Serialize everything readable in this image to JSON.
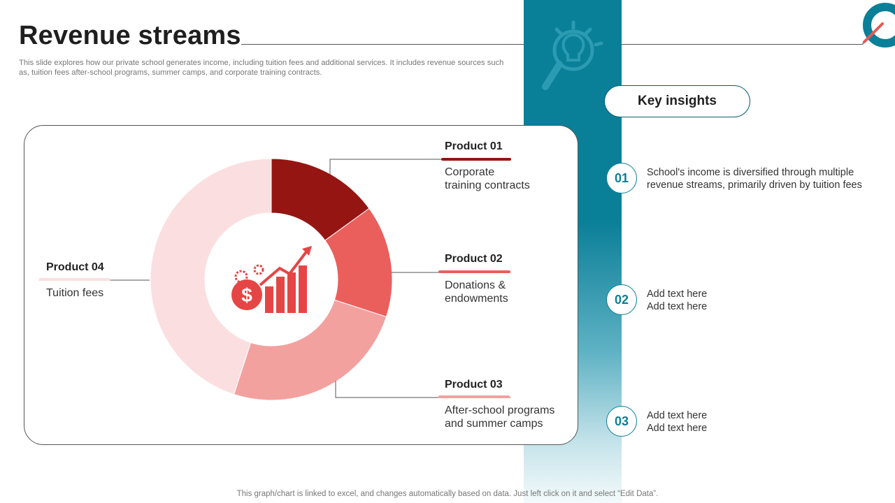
{
  "header": {
    "title": "Revenue streams",
    "subtitle": "This slide explores how our private school generates income, including tuition fees and additional services. It includes revenue sources such as, tuition fees after-school programs, summer camps, and corporate training contracts."
  },
  "chart_data": {
    "type": "pie",
    "variant": "donut",
    "categories": [
      "Product 01",
      "Product 02",
      "Product 03",
      "Product 04"
    ],
    "descriptions": [
      "Corporate training contracts",
      "Donations & endowments",
      "After-school programs and summer camps",
      "Tuition fees"
    ],
    "values": [
      15,
      15,
      25,
      45
    ],
    "colors": [
      "#951512",
      "#ea5f5c",
      "#f2a19f",
      "#fbdfe0"
    ],
    "legend_placement": "callouts"
  },
  "callouts": [
    {
      "title": "Product 01",
      "line1": "Corporate",
      "line2": "training contracts"
    },
    {
      "title": "Product 02",
      "line1": "Donations &",
      "line2": "endowments"
    },
    {
      "title": "Product 03",
      "line1": "After-school programs",
      "line2": "and summer camps"
    },
    {
      "title": "Product 04",
      "line1": "Tuition fees",
      "line2": ""
    }
  ],
  "insights": {
    "heading": "Key insights",
    "items": [
      {
        "num": "01",
        "line1": "School's income is diversified through multiple",
        "line2": "revenue streams, primarily driven by tuition fees"
      },
      {
        "num": "02",
        "line1": "Add text here",
        "line2": "Add text here"
      },
      {
        "num": "03",
        "line1": "Add text here",
        "line2": "Add text here"
      }
    ]
  },
  "icons": {
    "center": "dollar-growth-chart-icon",
    "band": "lightbulb-magnifier-icon",
    "corner": "pen-ring-icon"
  },
  "accent_color": "#0a7f98",
  "footer": "This graph/chart is linked to excel, and changes automatically based on data. Just left click on it and select “Edit Data”."
}
